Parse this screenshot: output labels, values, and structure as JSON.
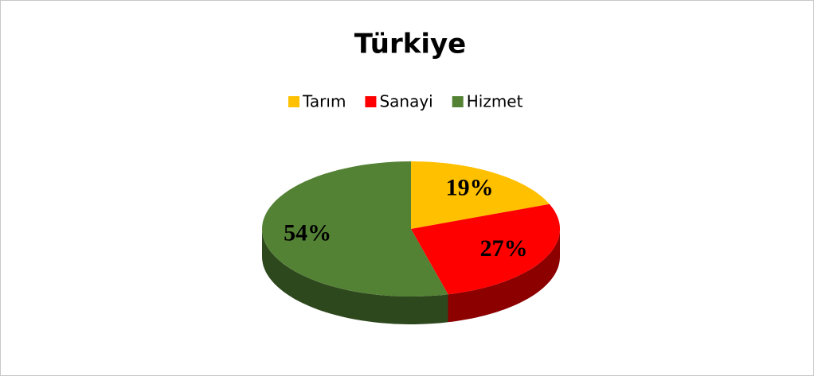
{
  "chart_data": {
    "type": "pie",
    "title": "Türkiye",
    "categories": [
      "Tarım",
      "Sanayi",
      "Hizmet"
    ],
    "values": [
      19,
      27,
      54
    ],
    "value_labels": [
      "19%",
      "27%",
      "54%"
    ],
    "colors": [
      "#FFC000",
      "#FF0000",
      "#548235"
    ],
    "legend": "top"
  }
}
